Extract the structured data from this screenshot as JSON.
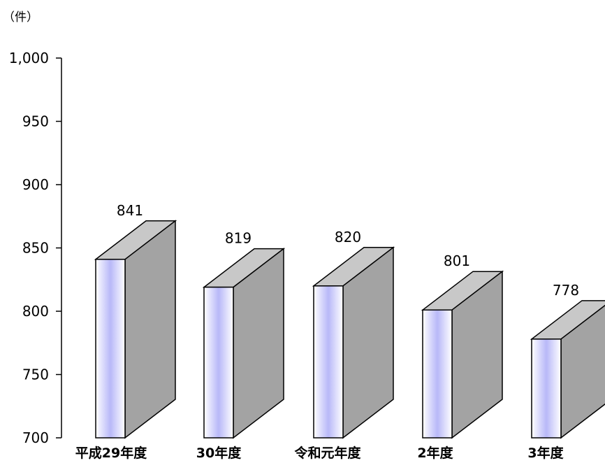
{
  "chart_data": {
    "type": "bar",
    "unit_label": "（件）",
    "categories": [
      "平成29年度",
      "30年度",
      "令和元年度",
      "2年度",
      "3年度"
    ],
    "values": [
      841,
      819,
      820,
      801,
      778
    ],
    "data_labels": [
      "841",
      "819",
      "820",
      "801",
      "778"
    ],
    "ylim": [
      700,
      1000
    ],
    "y_ticks": [
      700,
      750,
      800,
      850,
      900,
      950,
      1000
    ],
    "y_tick_labels": [
      "700",
      "750",
      "800",
      "850",
      "900",
      "950",
      "1,000"
    ],
    "grid": false,
    "style": "3d-box",
    "colors": {
      "front_edge": "#ffffff",
      "front_center": "#b8b8f8",
      "top": "#c8c8c8",
      "side": "#a3a3a3",
      "outline": "#000000"
    }
  }
}
